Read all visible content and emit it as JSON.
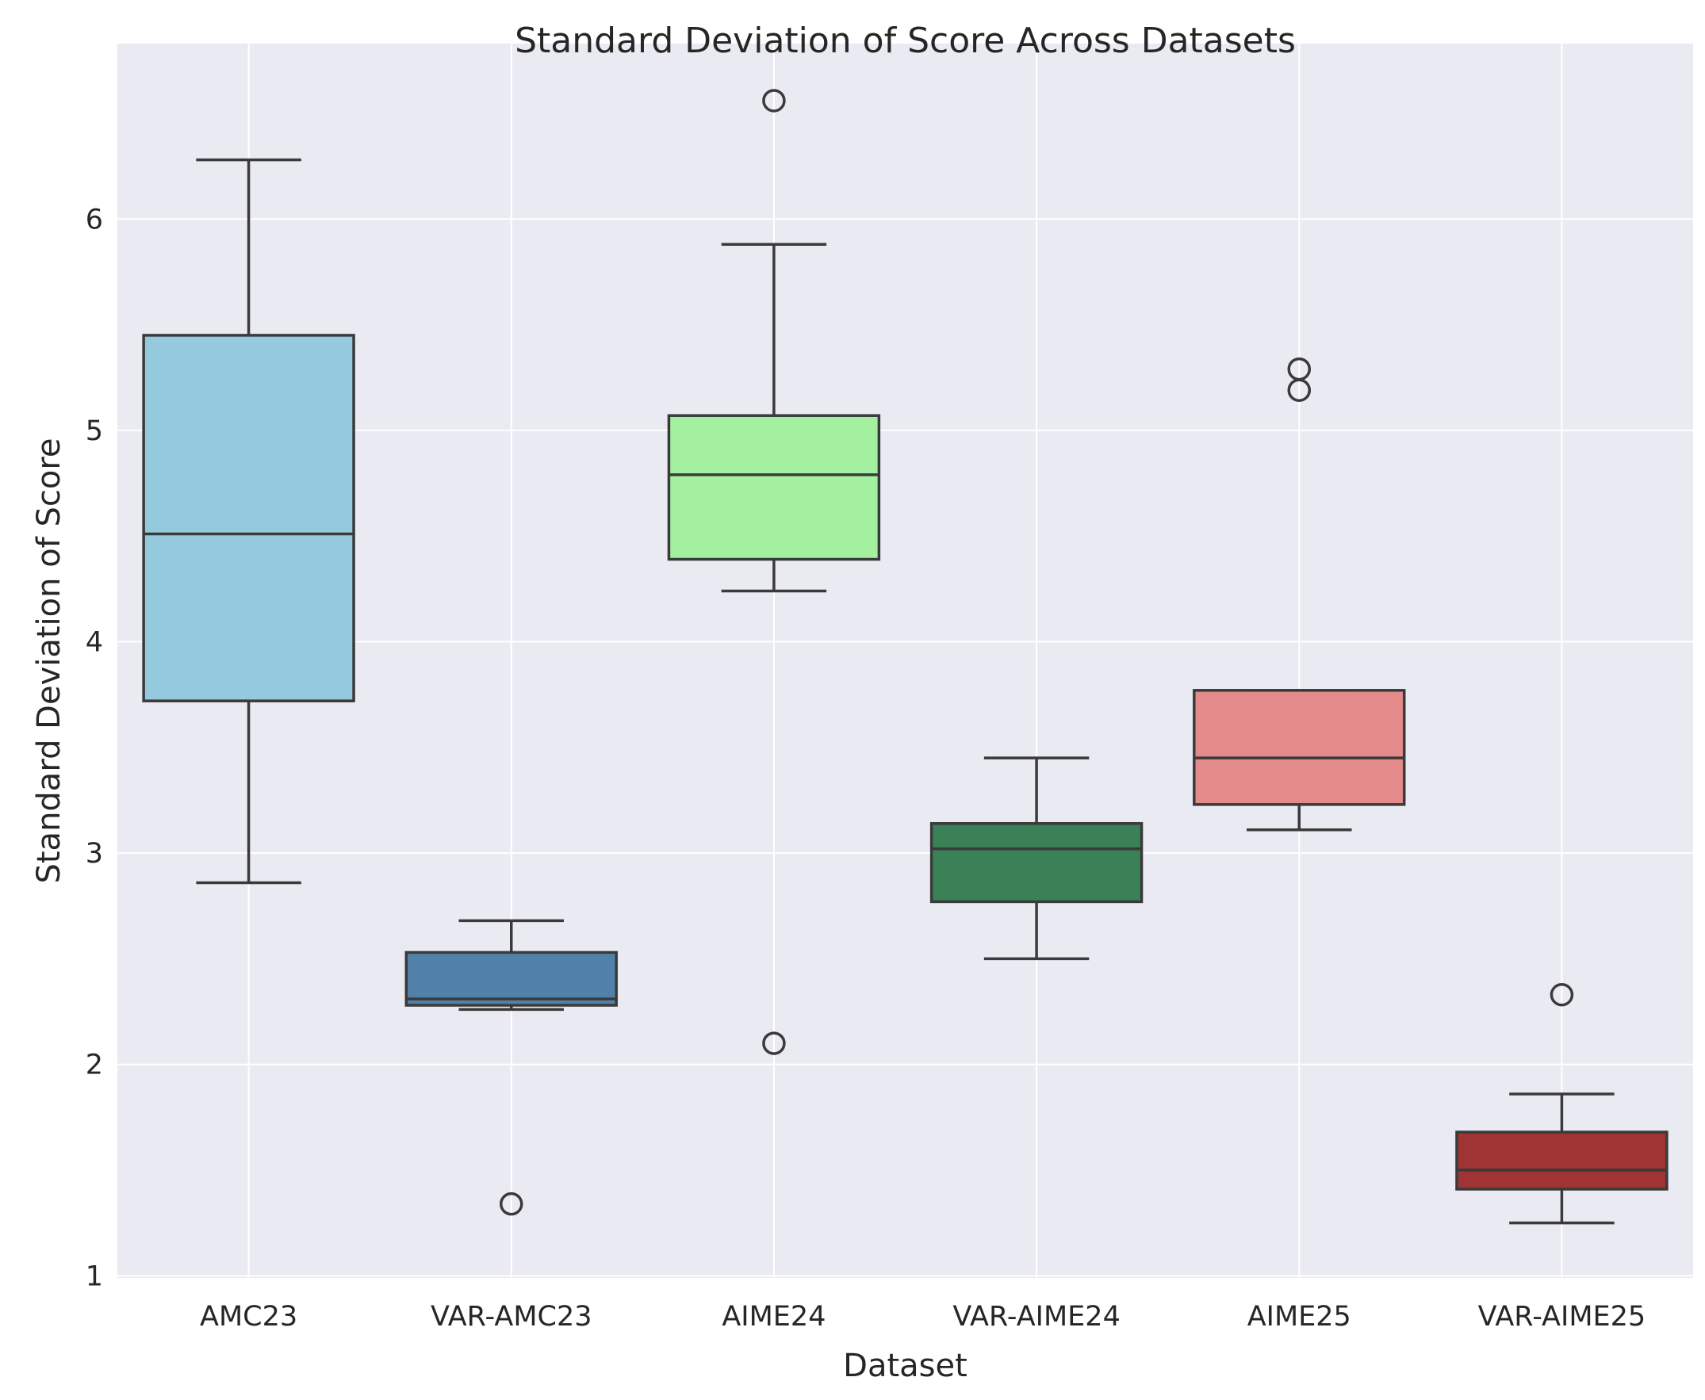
{
  "chart_data": {
    "type": "box",
    "title": "Standard Deviation of Score Across Datasets",
    "xlabel": "Dataset",
    "ylabel": "Standard Deviation of Score",
    "ylim": [
      0.99,
      6.83
    ],
    "yticks": [
      1,
      2,
      3,
      4,
      5,
      6
    ],
    "grid": true,
    "categories": [
      "AMC23",
      "VAR-AMC23",
      "AIME24",
      "VAR-AIME24",
      "AIME25",
      "VAR-AIME25"
    ],
    "boxes": [
      {
        "name": "AMC23",
        "color": "#95c9de",
        "whisker_low": 2.86,
        "q1": 3.72,
        "median": 4.51,
        "q3": 5.45,
        "whisker_high": 6.28,
        "outliers": []
      },
      {
        "name": "VAR-AMC23",
        "color": "#5181a8",
        "whisker_low": 2.26,
        "q1": 2.28,
        "median": 2.31,
        "q3": 2.53,
        "whisker_high": 2.68,
        "outliers": [
          1.34
        ]
      },
      {
        "name": "AIME24",
        "color": "#a3f0a0",
        "whisker_low": 4.24,
        "q1": 4.39,
        "median": 4.79,
        "q3": 5.07,
        "whisker_high": 5.88,
        "outliers": [
          6.56,
          2.1
        ]
      },
      {
        "name": "VAR-AIME24",
        "color": "#3b8157",
        "whisker_low": 2.5,
        "q1": 2.77,
        "median": 3.02,
        "q3": 3.14,
        "whisker_high": 3.45,
        "outliers": []
      },
      {
        "name": "AIME25",
        "color": "#e48a8b",
        "whisker_low": 3.11,
        "q1": 3.23,
        "median": 3.45,
        "q3": 3.77,
        "whisker_high": 3.77,
        "outliers": [
          5.29,
          5.19
        ]
      },
      {
        "name": "VAR-AIME25",
        "color": "#a03334",
        "whisker_low": 1.25,
        "q1": 1.41,
        "median": 1.5,
        "q3": 1.68,
        "whisker_high": 1.86,
        "outliers": [
          2.33
        ]
      }
    ]
  }
}
